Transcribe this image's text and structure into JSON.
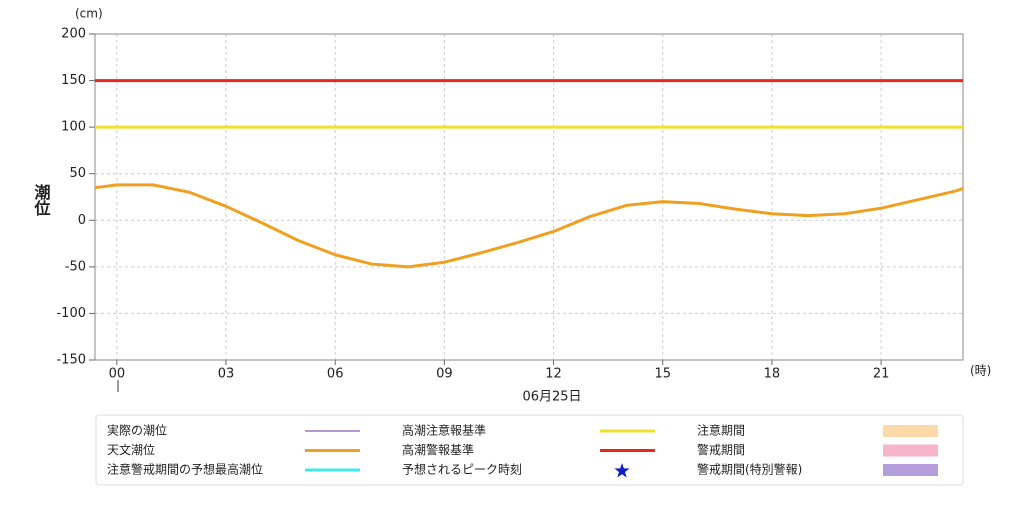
{
  "chart_data": {
    "type": "line",
    "y_unit": "(cm)",
    "y_label": "潮位",
    "x_unit": "(時)",
    "date_label": "06月25日",
    "x": [
      -0.6,
      0,
      1,
      2,
      3,
      4,
      5,
      6,
      7,
      8,
      9,
      10,
      11,
      12,
      13,
      14,
      15,
      16,
      17,
      18,
      19,
      20,
      21,
      22,
      23,
      23.25
    ],
    "series": [
      {
        "name": "天文潮位",
        "color": "#f0a020",
        "values": [
          35,
          38,
          38,
          30,
          15,
          -3,
          -22,
          -37,
          -47,
          -50,
          -45,
          -35,
          -24,
          -12,
          4,
          16,
          20,
          18,
          12,
          7,
          5,
          7,
          13,
          22,
          31,
          34
        ]
      }
    ],
    "reference_lines": [
      {
        "name": "高潮注意報基準",
        "color": "#f0e030",
        "value": 100
      },
      {
        "name": "高潮警報基準",
        "color": "#e8281e",
        "value": 150
      }
    ],
    "legend_only": [
      {
        "name": "実際の潮位",
        "color": "#7030a0",
        "symbol": "thin-line"
      },
      {
        "name": "注意警戒期間の予想最高潮位",
        "color": "#40e8f0",
        "symbol": "line"
      },
      {
        "name": "予想されるピーク時刻",
        "color": "#1020c0",
        "symbol": "star"
      },
      {
        "name": "注意期間",
        "color": "#fbd9a8",
        "symbol": "band"
      },
      {
        "name": "警戒期間",
        "color": "#f7b5cc",
        "symbol": "band"
      },
      {
        "name": "警戒期間(特別警報)",
        "color": "#b39ddb",
        "symbol": "band"
      }
    ],
    "xlim": [
      -0.6,
      23.25
    ],
    "xticks": [
      {
        "value": 0,
        "label": "00"
      },
      {
        "value": 3,
        "label": "03"
      },
      {
        "value": 6,
        "label": "06"
      },
      {
        "value": 9,
        "label": "09"
      },
      12,
      15,
      18,
      21
    ],
    "ylim": [
      -150,
      200
    ],
    "yticks": [
      -150,
      -100,
      -50,
      0,
      50,
      100,
      150,
      200
    ],
    "grid": true
  }
}
